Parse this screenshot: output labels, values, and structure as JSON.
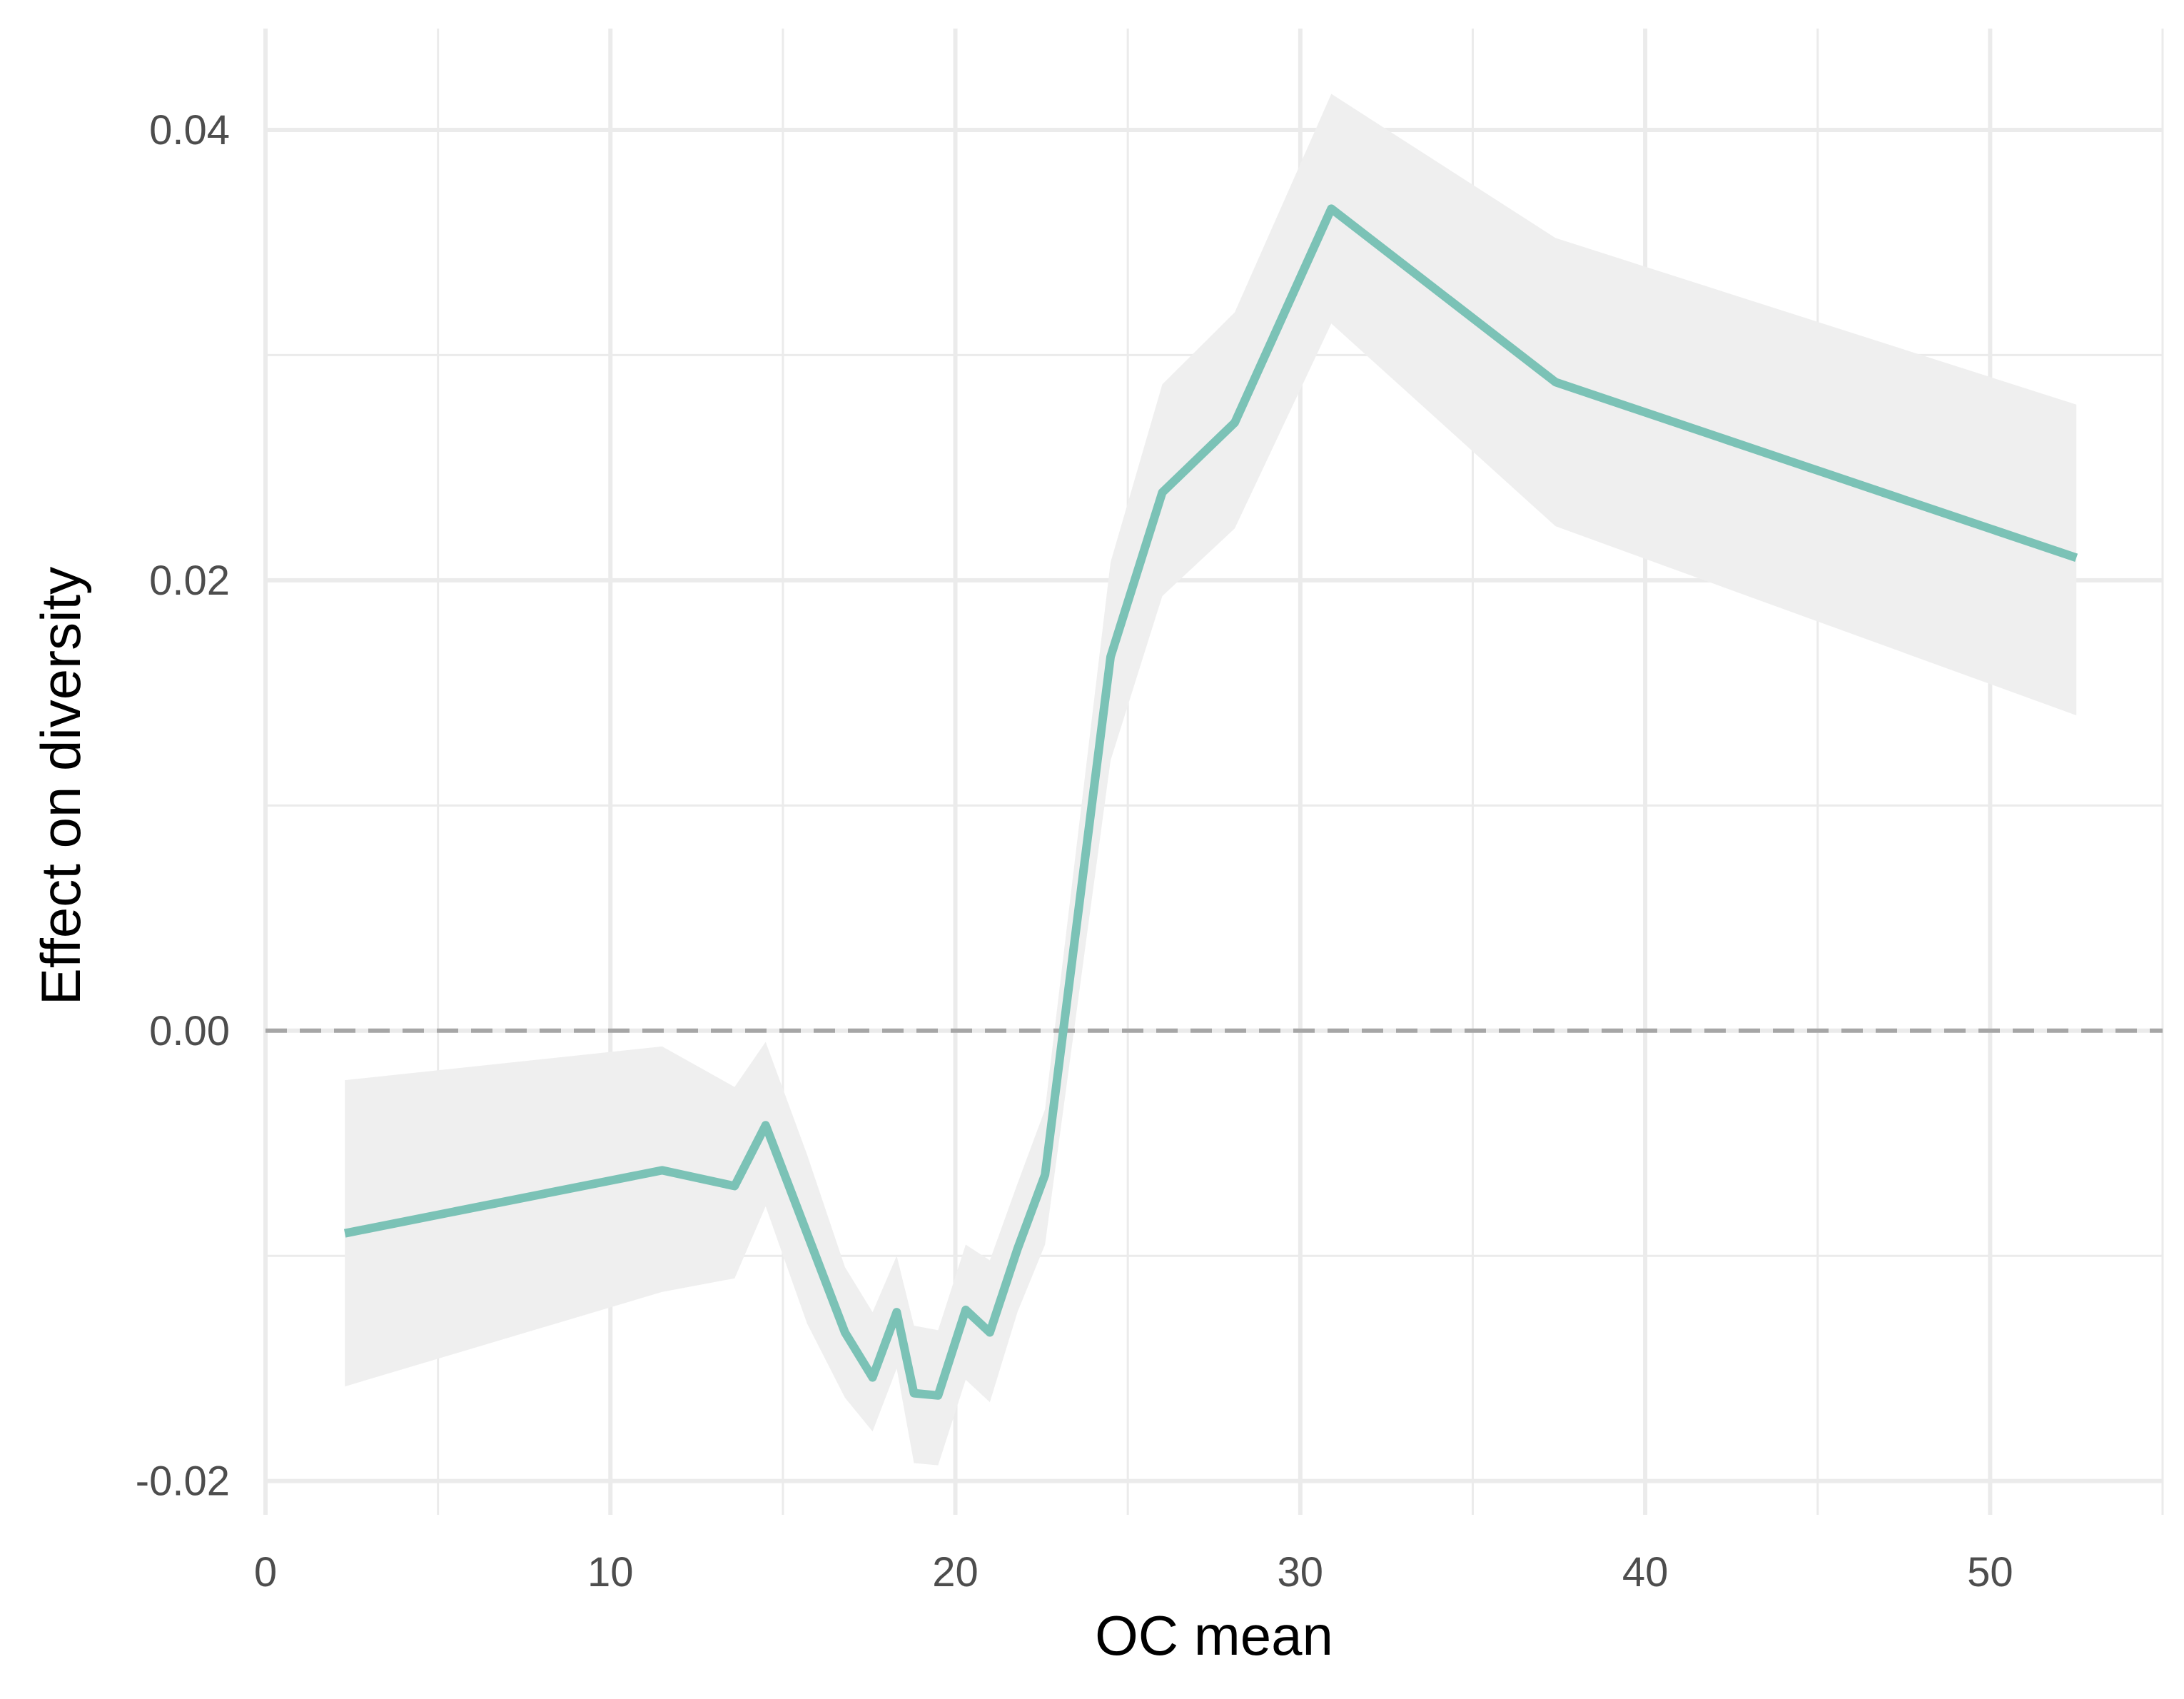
{
  "chart_data": {
    "type": "line",
    "xlabel": "OC mean",
    "ylabel": "Effect on diversity",
    "xlim": [
      0,
      55
    ],
    "ylim": [
      -0.0215,
      0.0445
    ],
    "x_ticks": [
      0,
      10,
      20,
      30,
      40,
      50
    ],
    "x_tick_labels": [
      "0",
      "10",
      "20",
      "30",
      "40",
      "50"
    ],
    "y_ticks": [
      -0.02,
      0.0,
      0.02,
      0.04
    ],
    "y_tick_labels": [
      "-0.02",
      "0.00",
      "0.02",
      "0.04"
    ],
    "grid": true,
    "reference_line": {
      "y": 0,
      "style": "dashed",
      "color": "#a6a6a6"
    },
    "colors": {
      "line": "#7bc2b6",
      "ribbon": "#efefef",
      "grid": "#ebebeb",
      "background": "#ffffff"
    },
    "series": [
      {
        "x": [
          2.3,
          11.5,
          13.6,
          14.5,
          15.7,
          16.8,
          17.6,
          18.3,
          18.8,
          19.5,
          20.3,
          21.0,
          21.8,
          22.6,
          24.5,
          26.0,
          28.1,
          30.9,
          37.4,
          52.5
        ],
        "y": [
          -0.009,
          -0.0062,
          -0.0069,
          -0.0042,
          -0.009,
          -0.0134,
          -0.0154,
          -0.0125,
          -0.0161,
          -0.0162,
          -0.0124,
          -0.0134,
          -0.0097,
          -0.0064,
          0.0166,
          0.0239,
          0.027,
          0.0365,
          0.0288,
          0.021
        ],
        "lower": [
          -0.0158,
          -0.0116,
          -0.011,
          -0.0078,
          -0.013,
          -0.0163,
          -0.0178,
          -0.015,
          -0.0192,
          -0.0193,
          -0.0155,
          -0.0165,
          -0.0125,
          -0.0095,
          0.012,
          0.0193,
          0.0223,
          0.0314,
          0.0224,
          0.014
        ],
        "upper": [
          -0.0022,
          -0.0007,
          -0.0025,
          -0.0005,
          -0.0055,
          -0.0105,
          -0.0125,
          -0.01,
          -0.0131,
          -0.0133,
          -0.0095,
          -0.0102,
          -0.0068,
          -0.0035,
          0.0208,
          0.0287,
          0.0319,
          0.0416,
          0.0352,
          0.0278
        ]
      }
    ]
  }
}
